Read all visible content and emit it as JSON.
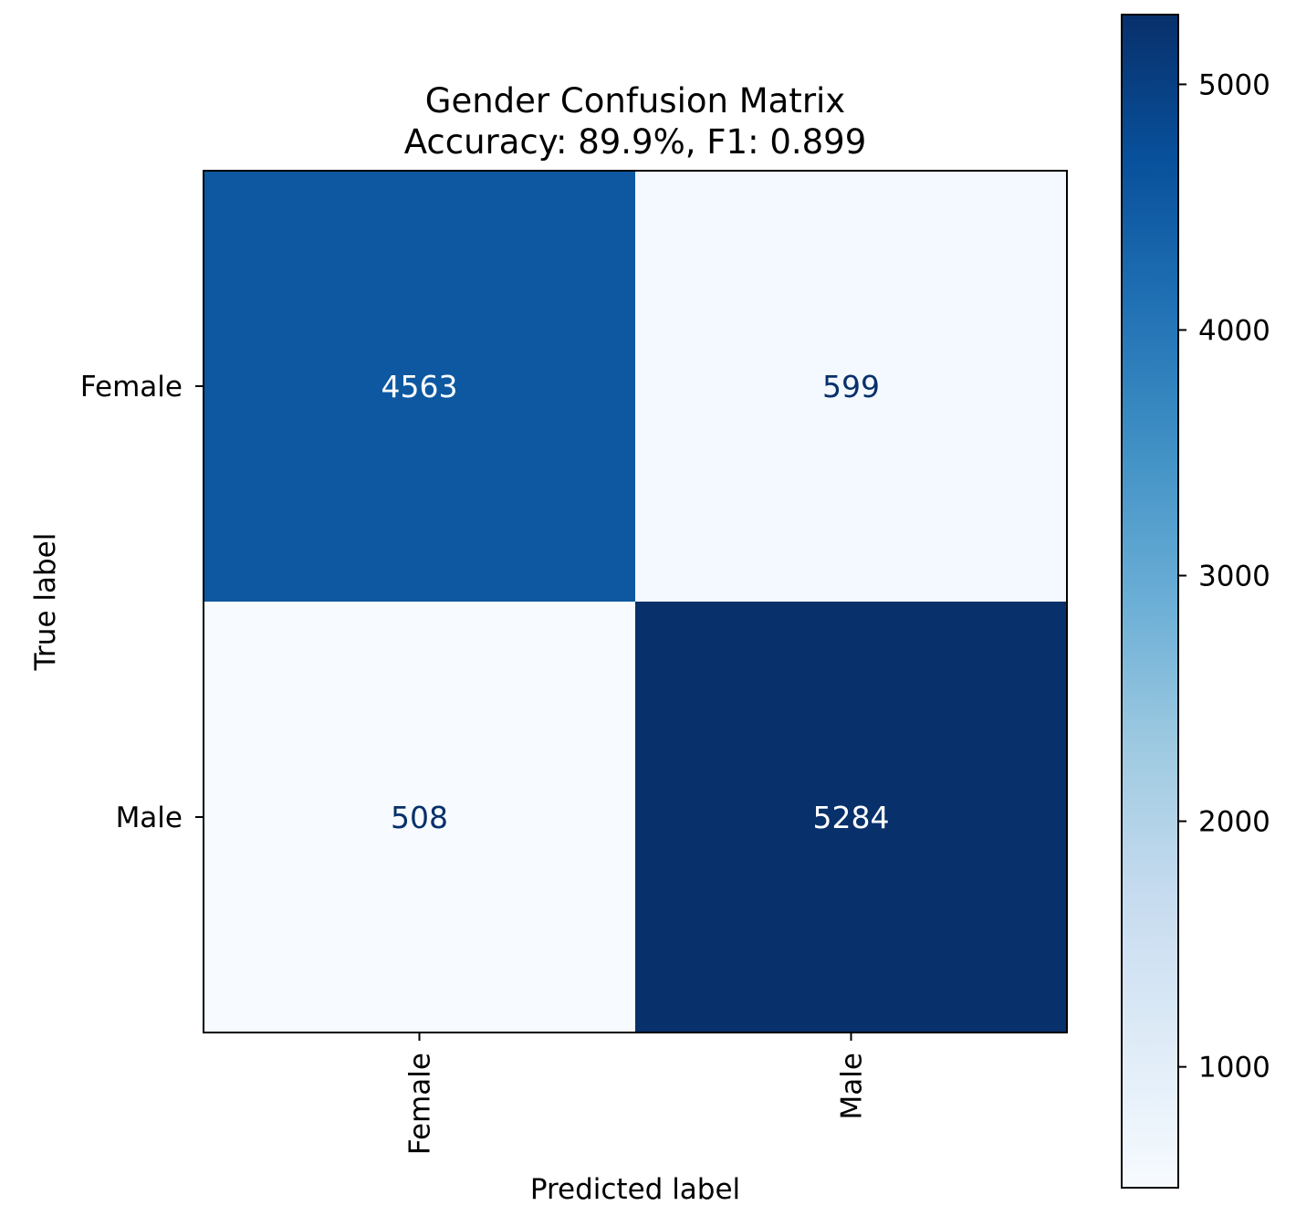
{
  "chart_data": {
    "type": "heatmap",
    "title_lines": [
      "Gender Confusion Matrix",
      "Accuracy: 89.9%, F1: 0.899"
    ],
    "xlabel": "Predicted label",
    "ylabel": "True label",
    "row_labels": [
      "Female",
      "Male"
    ],
    "col_labels": [
      "Female",
      "Male"
    ],
    "values": [
      [
        4563,
        599
      ],
      [
        508,
        5284
      ]
    ],
    "colormap": "Blues",
    "color_range": [
      508,
      5284
    ],
    "colorbar": {
      "ticks": [
        1000,
        2000,
        3000,
        4000,
        5000
      ],
      "tick_labels": [
        "1000",
        "2000",
        "3000",
        "4000",
        "5000"
      ]
    },
    "colormap_stops": [
      "#f7fbff",
      "#deebf7",
      "#c6dbef",
      "#9ecae1",
      "#6baed6",
      "#4292c6",
      "#2171b5",
      "#08519c",
      "#08306b"
    ],
    "cell_text_colors": {
      "on_light": "#08306b",
      "on_dark": "#ffffff"
    }
  }
}
